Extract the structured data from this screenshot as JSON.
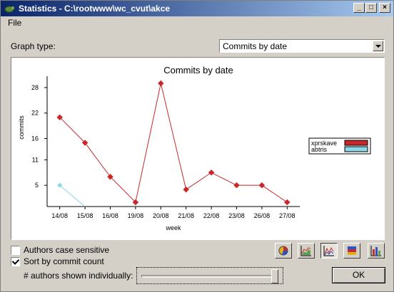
{
  "window": {
    "title": "Statistics - C:\\rootwww\\wc_cvut\\akce"
  },
  "menu": {
    "file_label": "File"
  },
  "graph_type": {
    "label": "Graph type:",
    "selected": "Commits by date"
  },
  "chart_data": {
    "type": "line",
    "title": "Commits by date",
    "xlabel": "week",
    "ylabel": "commits",
    "categories": [
      "14/08",
      "15/08",
      "16/08",
      "19/08",
      "20/08",
      "21/08",
      "22/08",
      "23/08",
      "26/08",
      "27/08"
    ],
    "yticks": [
      5,
      11,
      16,
      22,
      28
    ],
    "ylim": [
      0,
      30
    ],
    "grid": false,
    "legend_position": "right",
    "series": [
      {
        "name": "xprskave",
        "color": "#c8282c",
        "values": [
          21,
          15,
          7,
          1,
          29,
          4,
          8,
          5,
          5,
          1
        ]
      },
      {
        "name": "abtris",
        "color": "#8ad8e8",
        "values": [
          5,
          0,
          null,
          null,
          null,
          null,
          null,
          null,
          null,
          null
        ]
      }
    ]
  },
  "options": {
    "case_sensitive_label": "Authors case sensitive",
    "case_sensitive_checked": false,
    "sort_label": "Sort by commit count",
    "sort_checked": true,
    "authors_label": "# authors shown individually:",
    "authors_slider_fraction": 1.0
  },
  "ok_label": "OK"
}
